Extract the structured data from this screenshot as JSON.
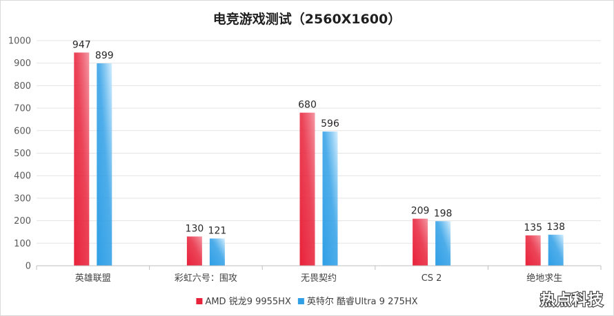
{
  "chart_data": {
    "type": "bar",
    "title": "电竞游戏测试（2560X1600）",
    "xlabel": "",
    "ylabel": "",
    "ylim": [
      0,
      1000
    ],
    "yticks": [
      0,
      100,
      200,
      300,
      400,
      500,
      600,
      700,
      800,
      900,
      1000
    ],
    "grid": true,
    "legend_position": "bottom",
    "categories": [
      "英雄联盟",
      "彩虹六号：围攻",
      "无畏契约",
      "CS 2",
      "绝地求生"
    ],
    "series": [
      {
        "name": "AMD 锐龙9 9955HX",
        "values": [
          947,
          130,
          680,
          209,
          135
        ],
        "color": "#e8223a",
        "color_top": "#f49aa6"
      },
      {
        "name": "英特尔 酷睿Ultra 9 275HX",
        "values": [
          899,
          121,
          596,
          198,
          138
        ],
        "color": "#2f9fe6",
        "color_top": "#d6efff"
      }
    ]
  },
  "watermark": "热点科技"
}
